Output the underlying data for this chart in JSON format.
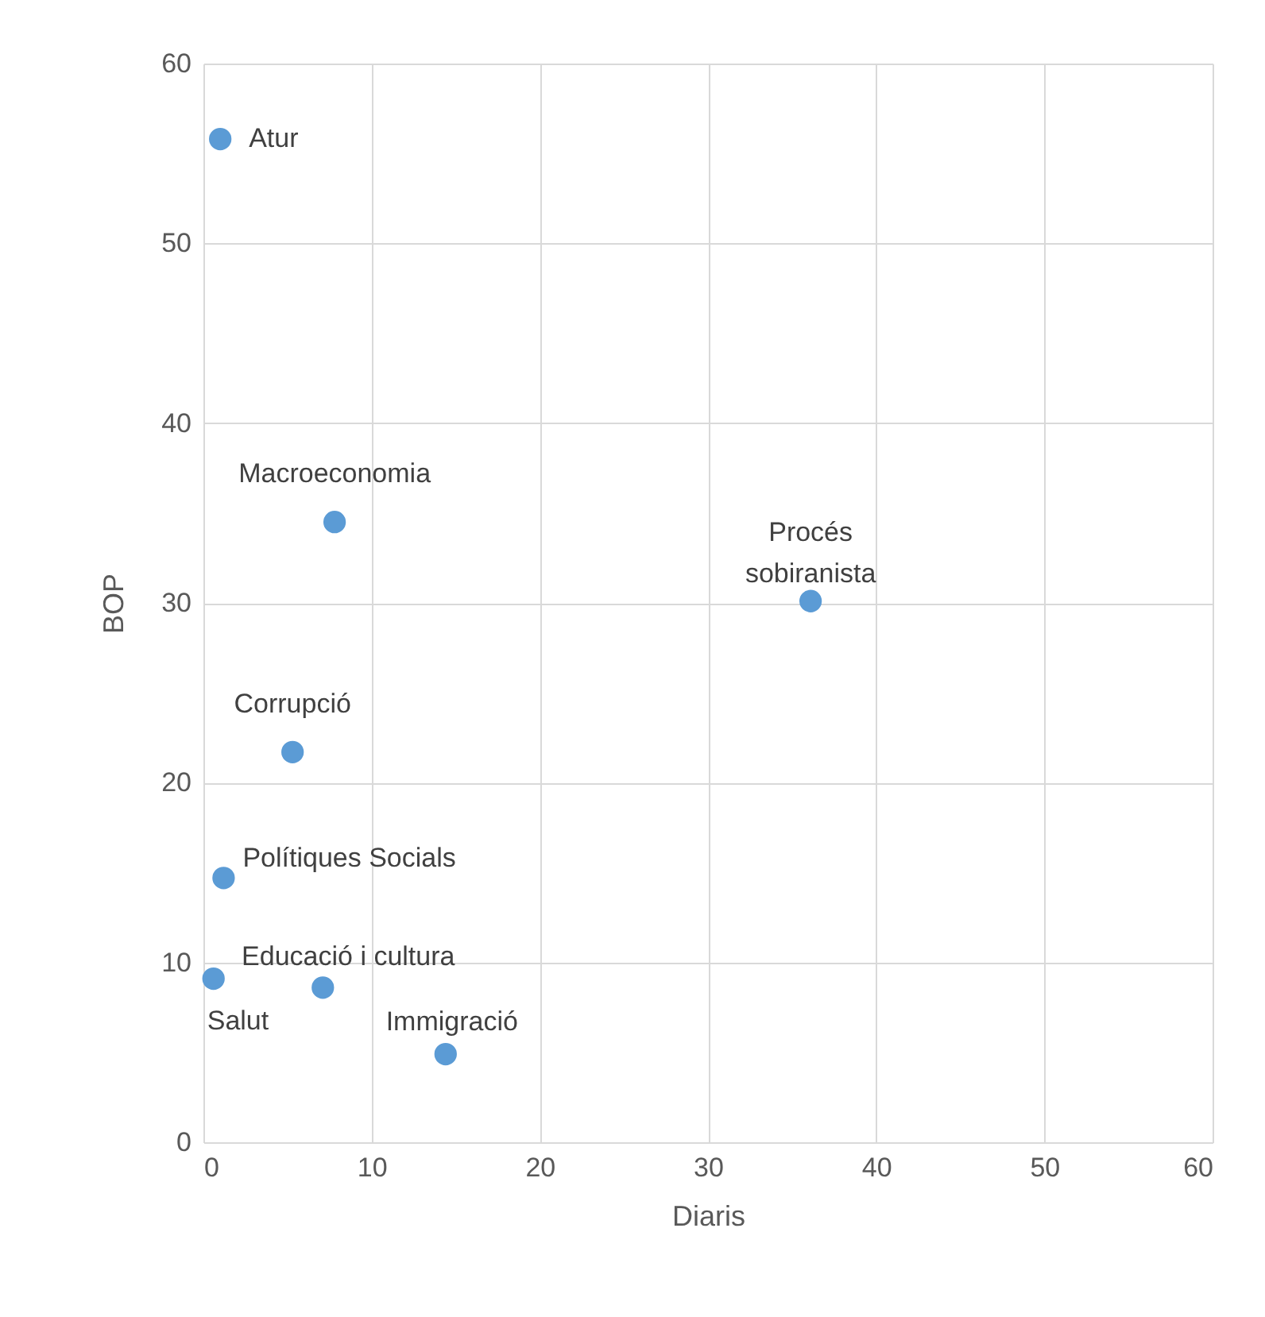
{
  "chart_data": {
    "type": "scatter",
    "xlabel": "Diaris",
    "ylabel": "BOP",
    "x": [
      1.0,
      7.8,
      36.1,
      5.3,
      1.2,
      0.6,
      7.1,
      14.4
    ],
    "series": [
      {
        "color": "#5b9bd5",
        "values": [
          55.8,
          34.5,
          30.1,
          21.7,
          14.7,
          9.1,
          8.6,
          4.9
        ]
      }
    ],
    "annotations": [
      {
        "text": "Atur",
        "x": 1.0,
        "y": 55.8
      },
      {
        "text": "Macroeconomia",
        "x": 7.8,
        "y": 34.5
      },
      {
        "text": "Procés sobiranista",
        "x": 36.1,
        "y": 30.1
      },
      {
        "text": "Corrupció",
        "x": 5.3,
        "y": 21.7
      },
      {
        "text": "Polítiques Socials",
        "x": 1.2,
        "y": 14.7
      },
      {
        "text": "Salut",
        "x": 0.6,
        "y": 9.1
      },
      {
        "text": "Educació i cultura",
        "x": 7.1,
        "y": 8.6
      },
      {
        "text": "Immigració",
        "x": 14.4,
        "y": 4.9
      }
    ],
    "xlim": [
      0,
      60
    ],
    "xticks": [
      0,
      10,
      20,
      30,
      40,
      50,
      60
    ],
    "ylim": [
      0,
      60
    ],
    "yticks": [
      0,
      10,
      20,
      30,
      40,
      50,
      60
    ],
    "grid": true,
    "marker": "circle"
  }
}
